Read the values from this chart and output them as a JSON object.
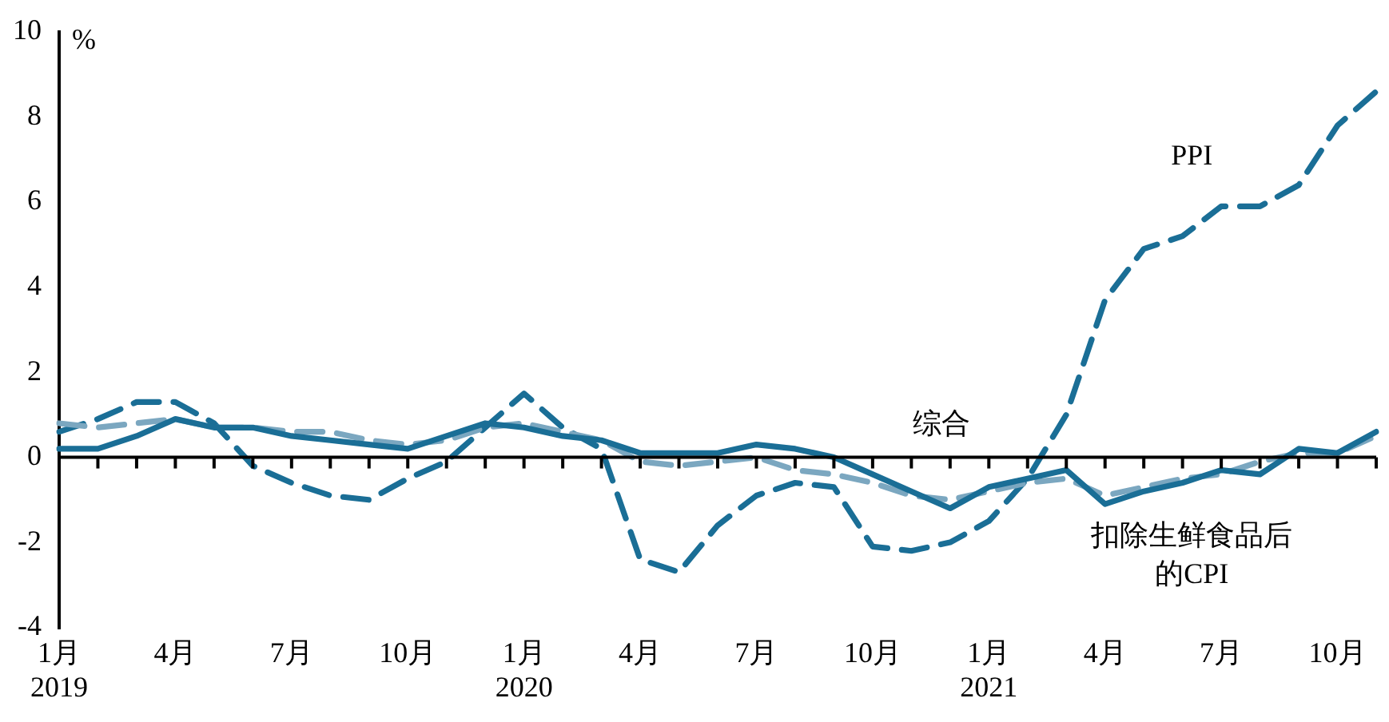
{
  "chart_data": {
    "type": "line",
    "ylabel": "%",
    "categories": [
      "1月\n2019",
      null,
      null,
      "4月",
      null,
      null,
      "7月",
      null,
      null,
      "10月",
      null,
      null,
      "1月\n2020",
      null,
      null,
      "4月",
      null,
      null,
      "7月",
      null,
      null,
      "10月",
      null,
      null,
      "1月\n2021",
      null,
      null,
      "4月",
      null,
      null,
      "7月",
      null,
      null,
      "10月",
      null
    ],
    "series": [
      {
        "name": "综合",
        "color": "#1a6e96",
        "line_style": "solid",
        "values": [
          0.2,
          0.2,
          0.5,
          0.9,
          0.7,
          0.7,
          0.5,
          0.4,
          0.3,
          0.2,
          0.5,
          0.8,
          0.7,
          0.5,
          0.4,
          0.1,
          0.1,
          0.1,
          0.3,
          0.2,
          0.0,
          -0.4,
          -0.8,
          -1.2,
          -0.7,
          -0.5,
          -0.3,
          -1.1,
          -0.8,
          -0.6,
          -0.3,
          -0.4,
          0.2,
          0.1,
          0.6
        ]
      },
      {
        "name": "扣除生鲜食品后的CPI",
        "color": "#7ba7c0",
        "line_style": "dashed",
        "values": [
          0.8,
          0.7,
          0.8,
          0.9,
          0.7,
          0.7,
          0.6,
          0.6,
          0.4,
          0.3,
          0.4,
          0.7,
          0.8,
          0.6,
          0.4,
          -0.1,
          -0.2,
          -0.1,
          0.0,
          -0.3,
          -0.4,
          -0.6,
          -0.9,
          -1.0,
          -0.8,
          -0.6,
          -0.5,
          -0.9,
          -0.7,
          -0.5,
          -0.4,
          -0.1,
          0.1,
          0.1,
          0.5
        ]
      },
      {
        "name": "PPI",
        "color": "#1a6e96",
        "line_style": "dashed",
        "values": [
          0.6,
          0.9,
          1.3,
          1.3,
          0.8,
          -0.2,
          -0.6,
          -0.9,
          -1.0,
          -0.5,
          -0.1,
          0.7,
          1.5,
          0.7,
          0.2,
          -2.4,
          -2.7,
          -1.6,
          -0.9,
          -0.6,
          -0.7,
          -2.1,
          -2.2,
          -2.0,
          -1.5,
          -0.5,
          1.0,
          3.7,
          4.9,
          5.2,
          5.9,
          5.9,
          6.4,
          7.8,
          8.6
        ]
      }
    ],
    "ylim": [
      -4,
      10
    ],
    "yticks": [
      -4,
      -2,
      0,
      2,
      4,
      6,
      8,
      10
    ],
    "ref_lines": [
      {
        "axis": "y",
        "value": 0,
        "color": "#000000"
      }
    ],
    "grid": false,
    "legend": false
  }
}
